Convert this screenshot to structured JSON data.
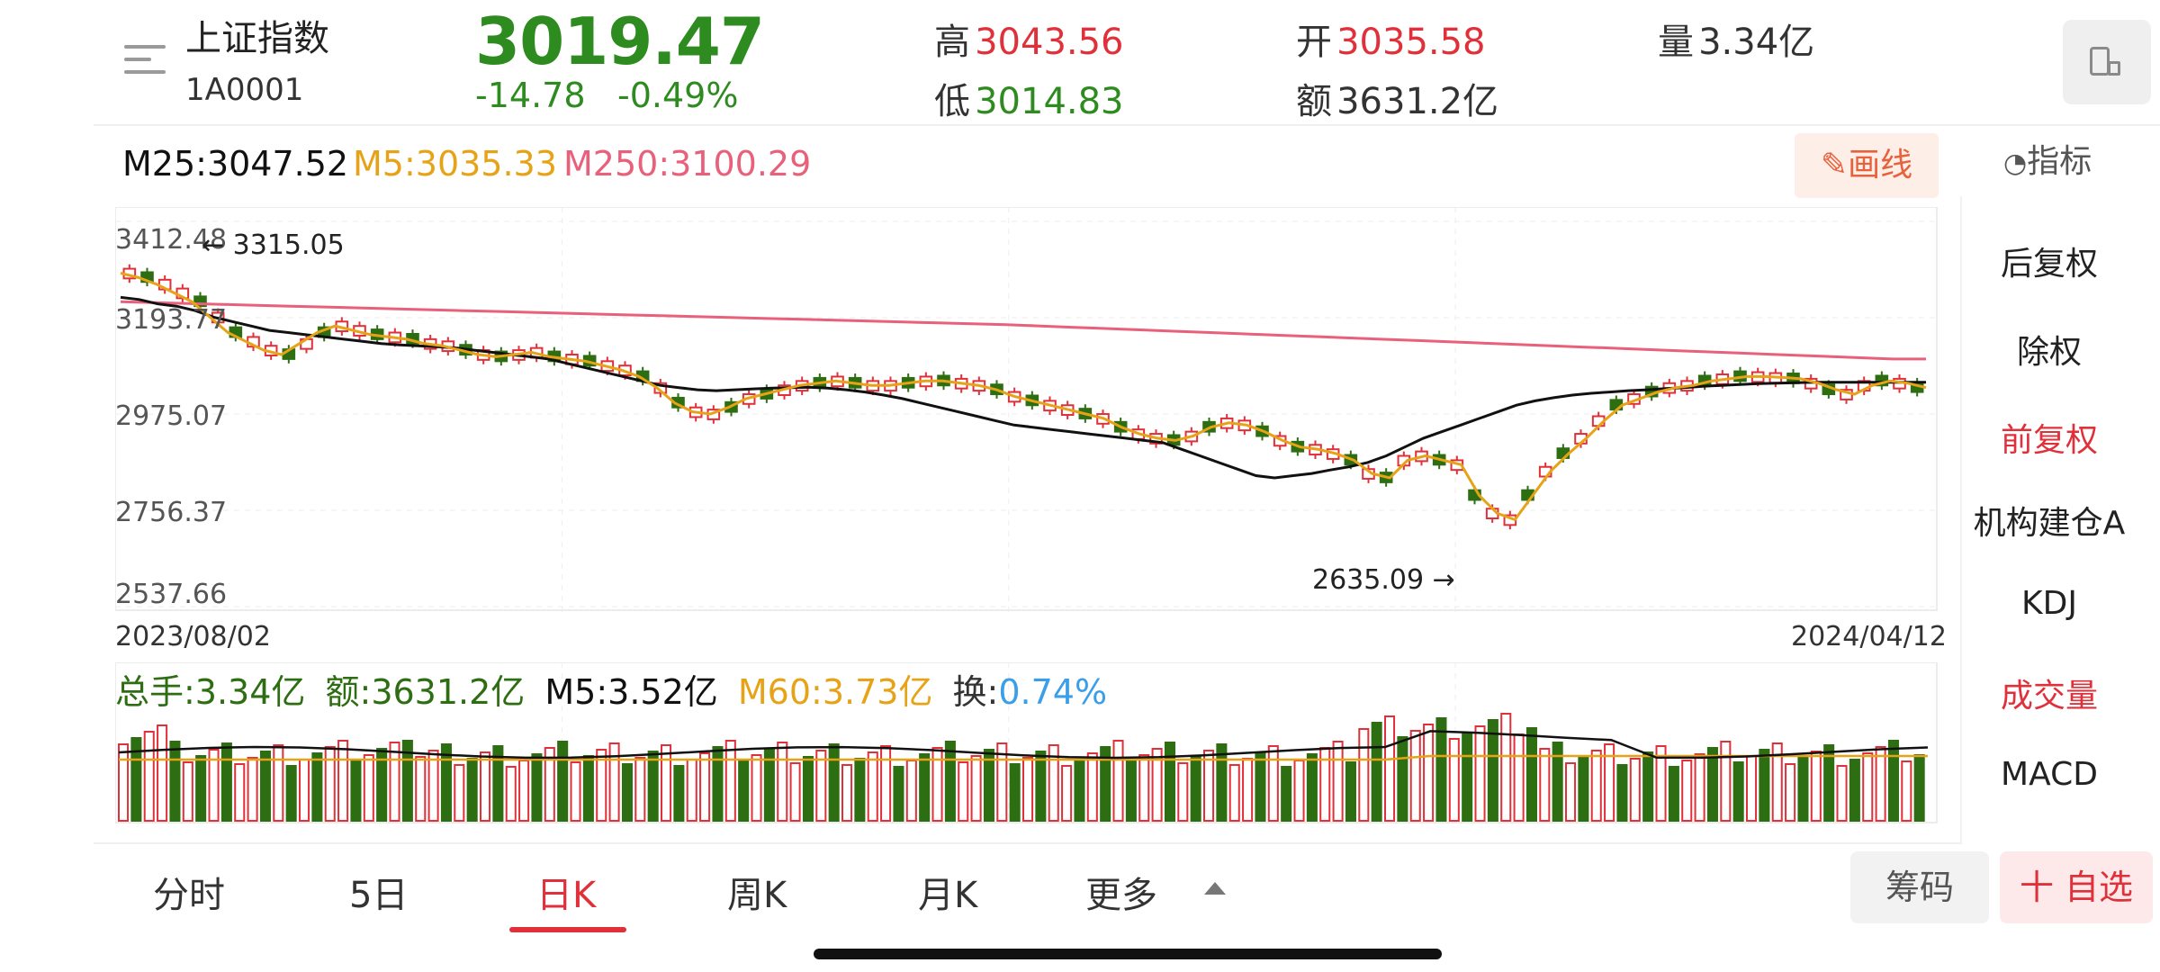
{
  "quote": {
    "name": "上证指数",
    "code": "1A0001",
    "price": "3019.47",
    "change": "-14.78",
    "change_pct": "-0.49%",
    "high_label": "高",
    "high": "3043.56",
    "low_label": "低",
    "low": "3014.83",
    "open_label": "开",
    "open": "3035.58",
    "amount_label": "额",
    "amount": "3631.2亿",
    "volume_label": "量",
    "volume": "3.34亿"
  },
  "ma_legend": {
    "m25": "M25:3047.52",
    "m5": "M5:3035.33",
    "m250": "M250:3100.29"
  },
  "toolbar": {
    "draw_label": "画线",
    "indicator_label": "指标"
  },
  "chart_data": {
    "type": "candlestick",
    "y_ticks": [
      "3412.48",
      "3193.77",
      "2975.07",
      "2756.37",
      "2537.66"
    ],
    "ylim": [
      2537.66,
      3412.48
    ],
    "start_date": "2023/08/02",
    "end_date": "2024/04/12",
    "high_annotation": "3315.05",
    "low_annotation": "2635.09",
    "ma5": [
      3295,
      3285,
      3270,
      3250,
      3230,
      3195,
      3160,
      3140,
      3120,
      3110,
      3135,
      3160,
      3175,
      3165,
      3155,
      3150,
      3145,
      3135,
      3130,
      3120,
      3110,
      3105,
      3110,
      3115,
      3105,
      3100,
      3095,
      3085,
      3075,
      3060,
      3035,
      3000,
      2980,
      2975,
      2990,
      3010,
      3020,
      3030,
      3040,
      3045,
      3050,
      3045,
      3040,
      3040,
      3045,
      3050,
      3050,
      3045,
      3040,
      3030,
      3015,
      3005,
      2995,
      2985,
      2975,
      2965,
      2945,
      2930,
      2920,
      2915,
      2925,
      2945,
      2955,
      2950,
      2935,
      2915,
      2900,
      2895,
      2885,
      2870,
      2840,
      2830,
      2870,
      2880,
      2870,
      2860,
      2790,
      2750,
      2735,
      2790,
      2845,
      2885,
      2920,
      2960,
      2995,
      3010,
      3025,
      3035,
      3040,
      3050,
      3055,
      3060,
      3060,
      3058,
      3055,
      3045,
      3030,
      3020,
      3040,
      3050,
      3045,
      3035
    ],
    "ma25": [
      3240,
      3235,
      3225,
      3220,
      3210,
      3195,
      3185,
      3175,
      3165,
      3160,
      3155,
      3150,
      3145,
      3140,
      3135,
      3132,
      3130,
      3128,
      3125,
      3120,
      3115,
      3110,
      3105,
      3100,
      3090,
      3080,
      3070,
      3060,
      3050,
      3040,
      3035,
      3030,
      3028,
      3030,
      3032,
      3034,
      3035,
      3036,
      3034,
      3030,
      3025,
      3018,
      3010,
      3000,
      2990,
      2980,
      2970,
      2960,
      2950,
      2945,
      2940,
      2935,
      2930,
      2925,
      2920,
      2915,
      2910,
      2895,
      2880,
      2865,
      2850,
      2835,
      2830,
      2835,
      2840,
      2848,
      2855,
      2865,
      2880,
      2900,
      2920,
      2935,
      2950,
      2965,
      2980,
      2995,
      3005,
      3012,
      3018,
      3022,
      3025,
      3028,
      3030,
      3033,
      3035,
      3038,
      3040,
      3042,
      3044,
      3045,
      3046,
      3047,
      3047,
      3047,
      3047,
      3047,
      3047,
      3047
    ],
    "ma250": [
      3230,
      3228,
      3226,
      3224,
      3222,
      3220,
      3218,
      3216,
      3214,
      3212,
      3210,
      3208,
      3206,
      3204,
      3202,
      3200,
      3198,
      3196,
      3194,
      3192,
      3190,
      3188,
      3186,
      3184,
      3182,
      3180,
      3178,
      3175,
      3172,
      3169,
      3166,
      3163,
      3160,
      3157,
      3154,
      3151,
      3148,
      3145,
      3142,
      3139,
      3136,
      3133,
      3130,
      3127,
      3124,
      3121,
      3118,
      3115,
      3112,
      3109,
      3106,
      3103,
      3100,
      3100
    ],
    "volume": {
      "total_hand": "总手:3.34亿",
      "amount": "额:3631.2亿",
      "m5": "M5:3.52亿",
      "m60": "M60:3.73亿",
      "turnover_label": "换:",
      "turnover": "0.74%"
    }
  },
  "side_menu": [
    "后复权",
    "除权",
    "前复权",
    "机构建仓A",
    "KDJ",
    "成交量",
    "MACD"
  ],
  "tabs": [
    "分时",
    "5日",
    "日K",
    "周K",
    "月K",
    "更多"
  ],
  "active_tab": "日K",
  "bottom_buttons": {
    "chip": "筹码",
    "watchlist": "十 自选"
  },
  "colors": {
    "up": "#e0303a",
    "down": "#2e6e12",
    "ma5": "#e6a317",
    "ma25": "#111111",
    "ma250": "#e8607a"
  }
}
